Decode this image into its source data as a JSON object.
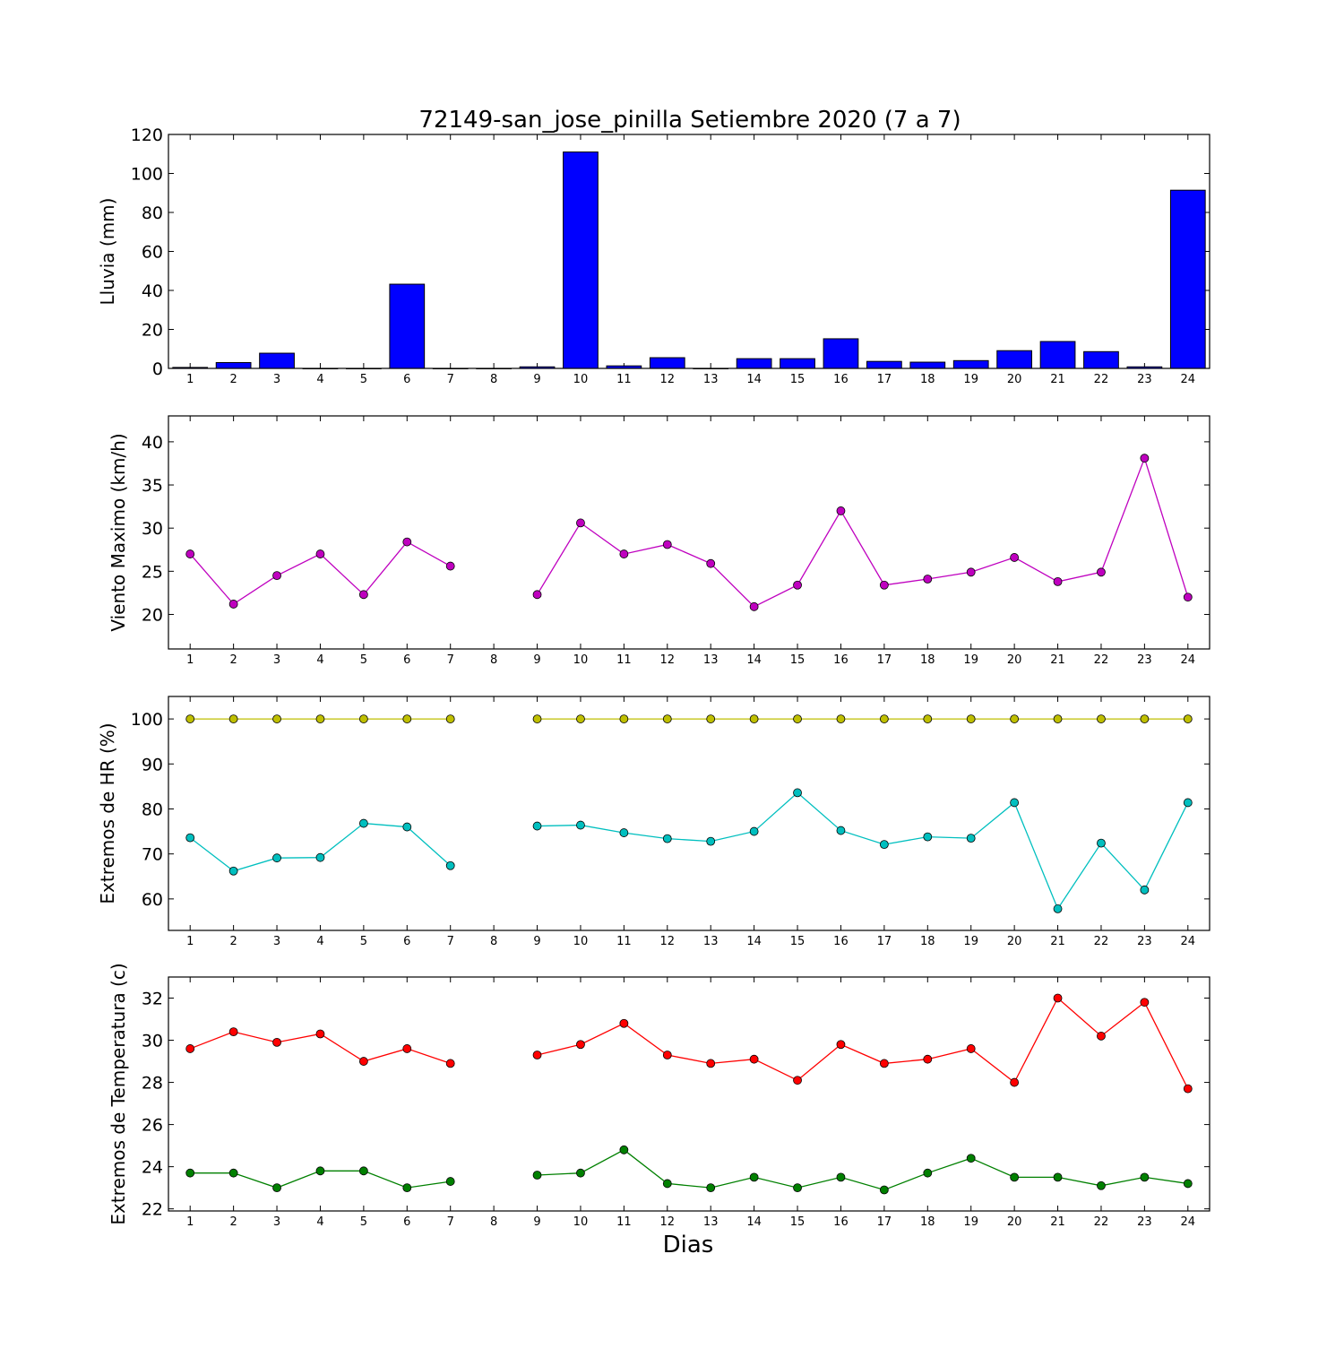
{
  "chart_data": [
    {
      "type": "bar",
      "title": "72149-san_jose_pinilla Setiembre 2020  (7 a 7)",
      "ylabel": "Lluvia (mm)",
      "xlabel": "",
      "categories": [
        "1",
        "2",
        "3",
        "4",
        "5",
        "6",
        "7",
        "8",
        "9",
        "10",
        "11",
        "12",
        "13",
        "14",
        "15",
        "16",
        "17",
        "18",
        "19",
        "20",
        "21",
        "22",
        "23",
        "24"
      ],
      "values": [
        0.5,
        3.0,
        7.8,
        0.0,
        0.0,
        43.2,
        0.0,
        0.0,
        0.8,
        111.0,
        1.3,
        5.5,
        0.0,
        5.0,
        5.0,
        15.2,
        3.6,
        3.2,
        4.0,
        9.1,
        13.8,
        8.6,
        0.8,
        91.4
      ],
      "ylim": [
        0,
        120
      ],
      "yticks": [
        0,
        20,
        40,
        60,
        80,
        100,
        120
      ],
      "color": "#0000ff"
    },
    {
      "type": "line",
      "title": "",
      "ylabel": "Viento Maximo (km/h)",
      "xlabel": "",
      "categories": [
        "1",
        "2",
        "3",
        "4",
        "5",
        "6",
        "7",
        "8",
        "9",
        "10",
        "11",
        "12",
        "13",
        "14",
        "15",
        "16",
        "17",
        "18",
        "19",
        "20",
        "21",
        "22",
        "23",
        "24"
      ],
      "series": [
        {
          "color": "#bf00bf",
          "values": [
            27.0,
            21.2,
            24.5,
            27.0,
            22.3,
            28.4,
            25.6,
            null,
            22.3,
            30.6,
            27.0,
            28.1,
            25.9,
            20.9,
            23.4,
            32.0,
            23.4,
            24.1,
            24.9,
            26.6,
            23.8,
            24.9,
            38.1,
            22.0
          ]
        }
      ],
      "ylim": [
        16,
        43
      ],
      "yticks": [
        20,
        25,
        30,
        35,
        40
      ]
    },
    {
      "type": "line",
      "title": "",
      "ylabel": "Extremos de HR (%)",
      "xlabel": "",
      "categories": [
        "1",
        "2",
        "3",
        "4",
        "5",
        "6",
        "7",
        "8",
        "9",
        "10",
        "11",
        "12",
        "13",
        "14",
        "15",
        "16",
        "17",
        "18",
        "19",
        "20",
        "21",
        "22",
        "23",
        "24"
      ],
      "series": [
        {
          "color": "#bfbf00",
          "values": [
            100,
            100,
            100,
            100,
            100,
            100,
            100,
            null,
            100,
            100,
            100,
            100,
            100,
            100,
            100,
            100,
            100,
            100,
            100,
            100,
            100,
            100,
            100,
            100
          ]
        },
        {
          "color": "#00bfbf",
          "values": [
            73.6,
            66.2,
            69.1,
            69.2,
            76.8,
            76.0,
            67.4,
            null,
            76.2,
            76.4,
            74.7,
            73.4,
            72.8,
            75.0,
            83.6,
            75.2,
            72.1,
            73.8,
            73.5,
            81.4,
            57.8,
            72.4,
            62.0,
            81.4
          ]
        }
      ],
      "ylim": [
        53,
        105
      ],
      "yticks": [
        60,
        70,
        80,
        90,
        100
      ]
    },
    {
      "type": "line",
      "title": "",
      "ylabel": "Extremos de Temperatura (c)",
      "xlabel": "Dias",
      "categories": [
        "1",
        "2",
        "3",
        "4",
        "5",
        "6",
        "7",
        "8",
        "9",
        "10",
        "11",
        "12",
        "13",
        "14",
        "15",
        "16",
        "17",
        "18",
        "19",
        "20",
        "21",
        "22",
        "23",
        "24"
      ],
      "series": [
        {
          "color": "#ff0000",
          "values": [
            29.6,
            30.4,
            29.9,
            30.3,
            29.0,
            29.6,
            28.9,
            null,
            29.3,
            29.8,
            30.8,
            29.3,
            28.9,
            29.1,
            28.1,
            29.8,
            28.9,
            29.1,
            29.6,
            28.0,
            32.0,
            30.2,
            31.8,
            27.7
          ]
        },
        {
          "color": "#008000",
          "values": [
            23.7,
            23.7,
            23.0,
            23.8,
            23.8,
            23.0,
            23.3,
            null,
            23.6,
            23.7,
            24.8,
            23.2,
            23.0,
            23.5,
            23.0,
            23.5,
            22.9,
            23.7,
            24.4,
            23.5,
            23.5,
            23.1,
            23.5,
            23.2
          ]
        }
      ],
      "ylim": [
        21.9,
        33
      ],
      "yticks": [
        22,
        24,
        26,
        28,
        30,
        32
      ]
    }
  ]
}
